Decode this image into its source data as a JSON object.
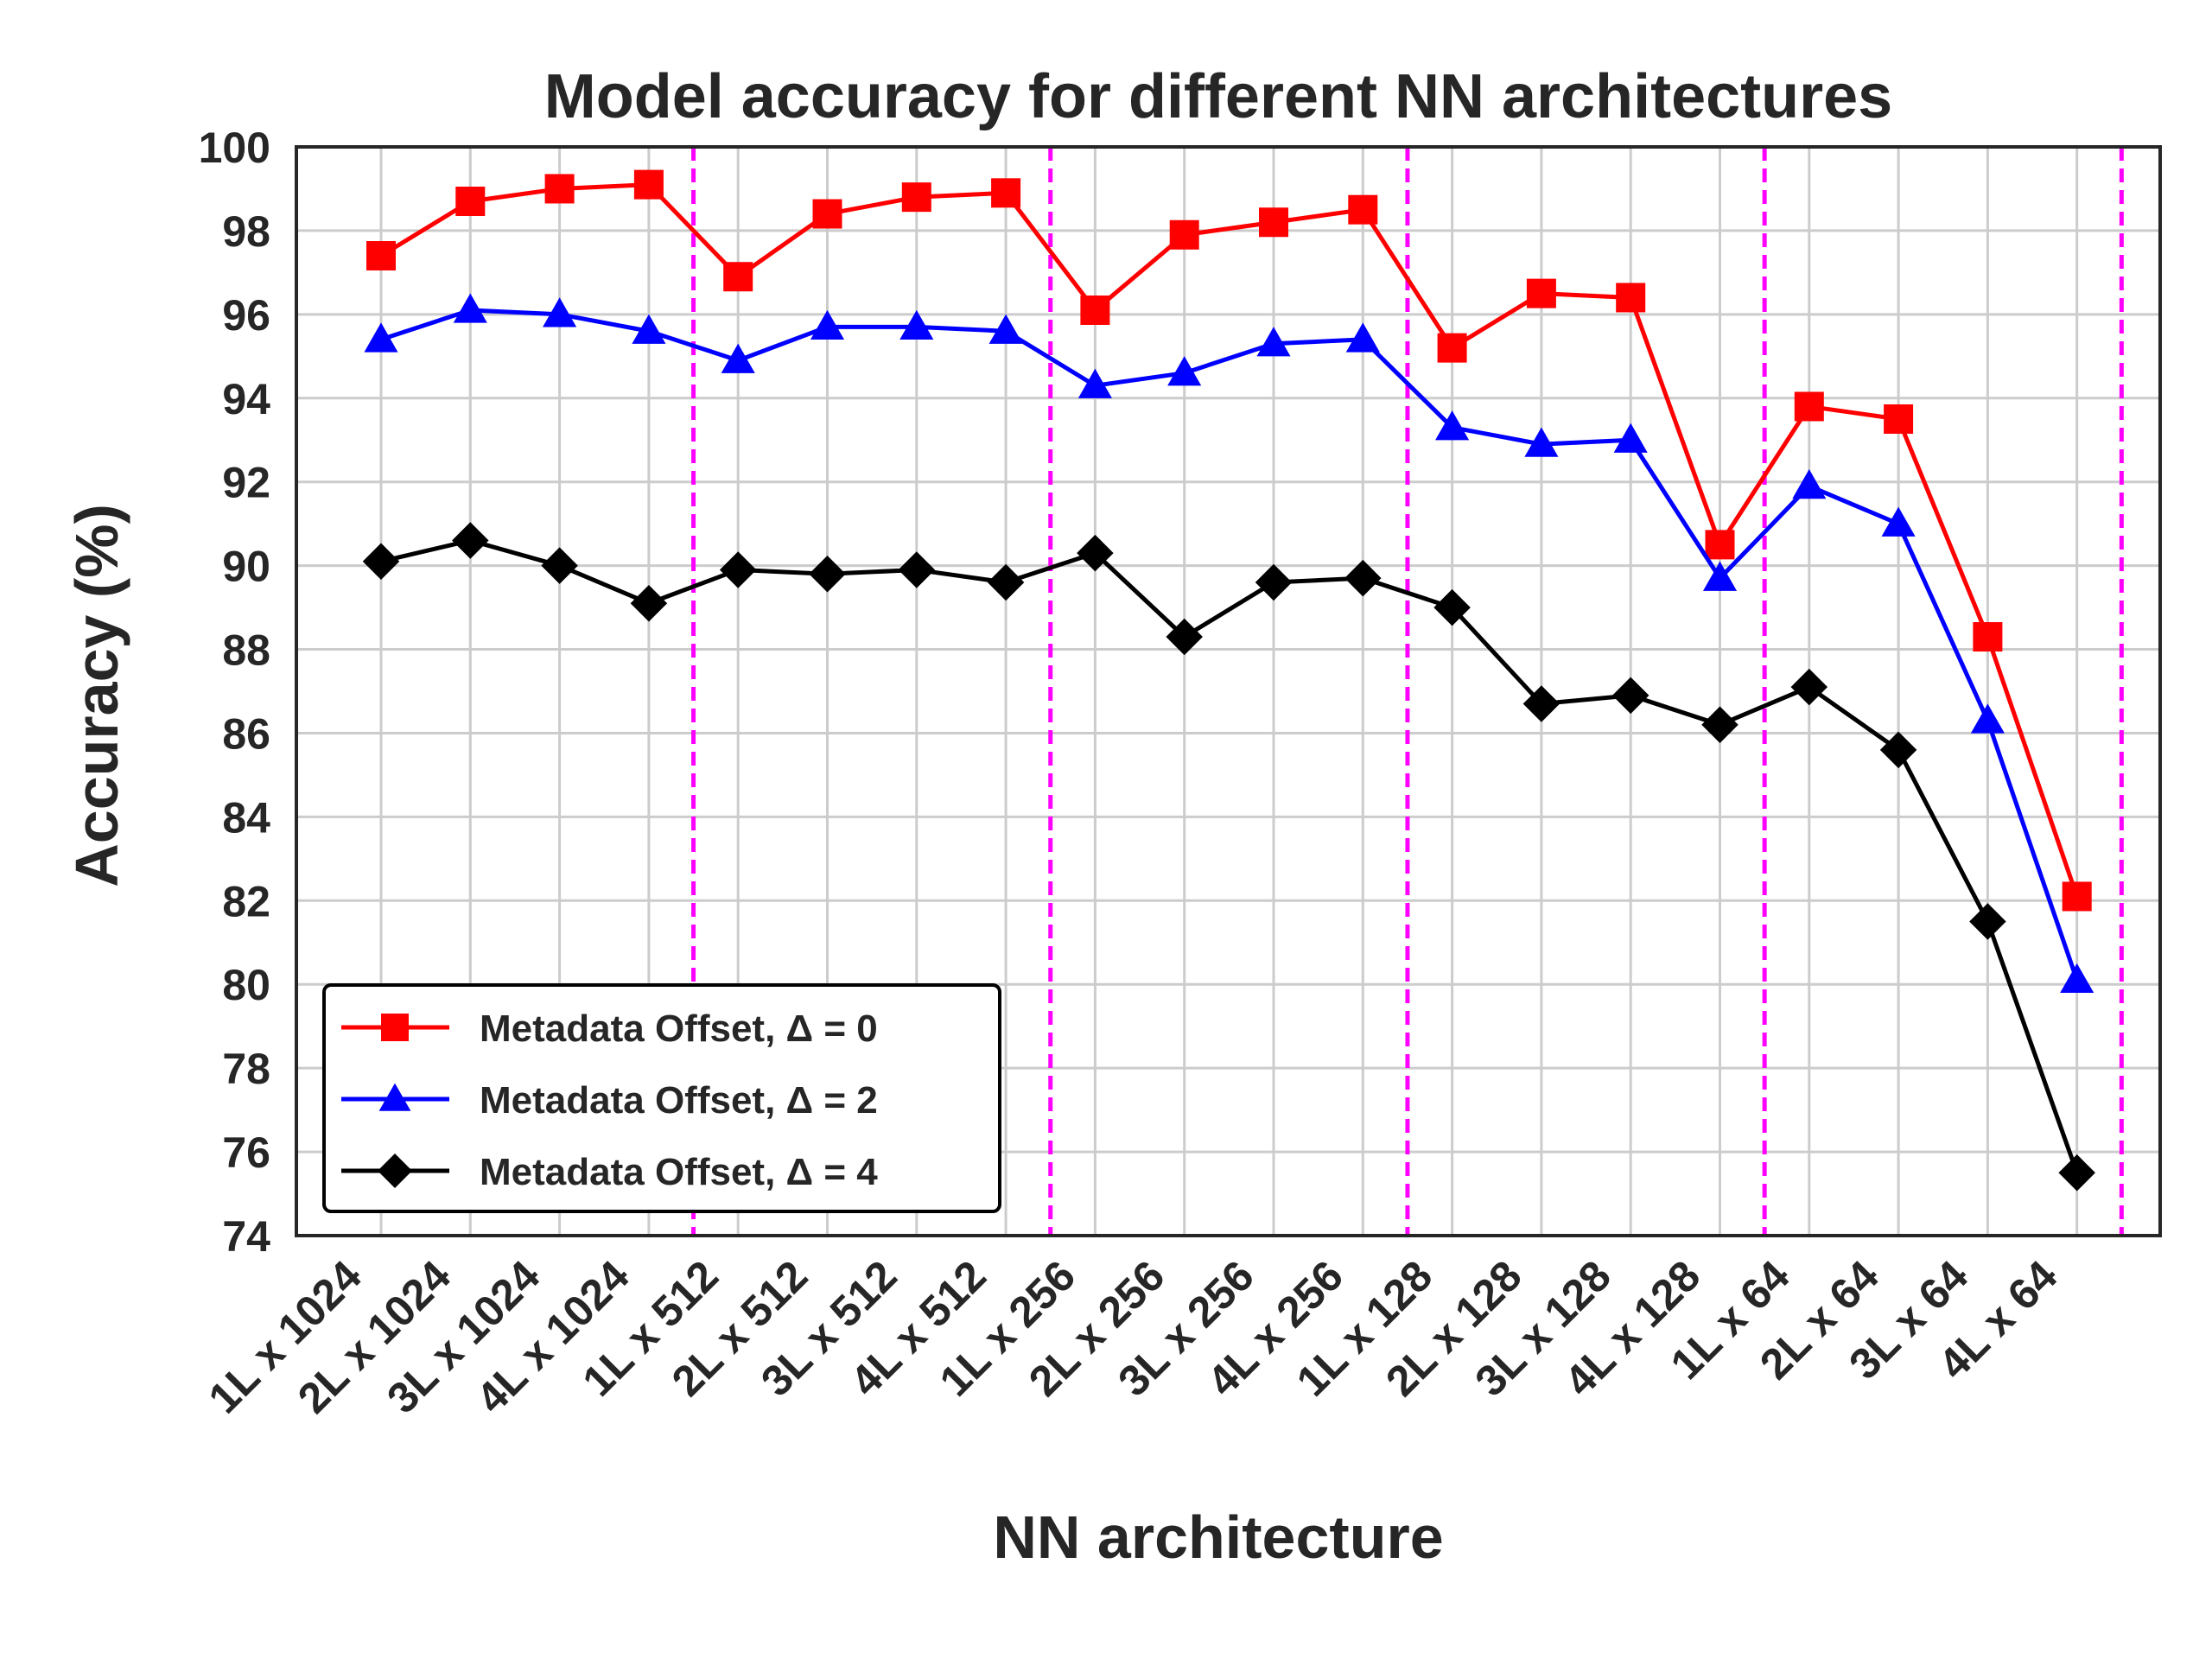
{
  "chart_data": {
    "type": "line",
    "title": "Model accuracy for different NN architectures",
    "xlabel": "NN architecture",
    "ylabel": "Accuracy (%)",
    "ylim": [
      74,
      100
    ],
    "yticks": [
      "74",
      "76",
      "78",
      "80",
      "82",
      "84",
      "86",
      "88",
      "90",
      "92",
      "94",
      "96",
      "98",
      "100"
    ],
    "grid": true,
    "legend_position": "lower-left",
    "categories": [
      "1L x 1024",
      "2L x 1024",
      "3L x 1024",
      "4L x 1024",
      "1L x 512",
      "2L x 512",
      "3L x 512",
      "4L x 512",
      "1L x 256",
      "2L x 256",
      "3L x 256",
      "4L x 256",
      "1L x 128",
      "2L x 128",
      "3L x 128",
      "4L x 128",
      "1L x 64",
      "2L x 64",
      "3L x 64",
      "4L x 64"
    ],
    "separators_after_index": [
      3,
      7,
      11,
      15,
      19
    ],
    "separator_color": "#ff00ff",
    "series": [
      {
        "name": "Metadata Offset, Δ = 0",
        "color": "#ff0000",
        "marker": "square",
        "values": [
          97.4,
          98.7,
          99.0,
          99.1,
          96.9,
          98.4,
          98.8,
          98.9,
          96.1,
          97.9,
          98.2,
          98.5,
          95.2,
          96.5,
          96.4,
          90.5,
          93.8,
          93.5,
          88.3,
          82.1
        ]
      },
      {
        "name": "Metadata Offset, Δ = 2",
        "color": "#0000ff",
        "marker": "triangle",
        "values": [
          95.4,
          96.1,
          96.0,
          95.6,
          94.9,
          95.7,
          95.7,
          95.6,
          94.3,
          94.6,
          95.3,
          95.4,
          93.3,
          92.9,
          93.0,
          89.7,
          91.9,
          91.0,
          86.3,
          80.1
        ]
      },
      {
        "name": "Metadata Offset, Δ = 4",
        "color": "#000000",
        "marker": "diamond",
        "values": [
          90.1,
          90.6,
          90.0,
          89.1,
          89.9,
          89.8,
          89.9,
          89.6,
          90.3,
          88.3,
          89.6,
          89.7,
          89.0,
          86.7,
          86.9,
          86.2,
          87.1,
          85.6,
          81.5,
          75.5
        ]
      }
    ]
  }
}
